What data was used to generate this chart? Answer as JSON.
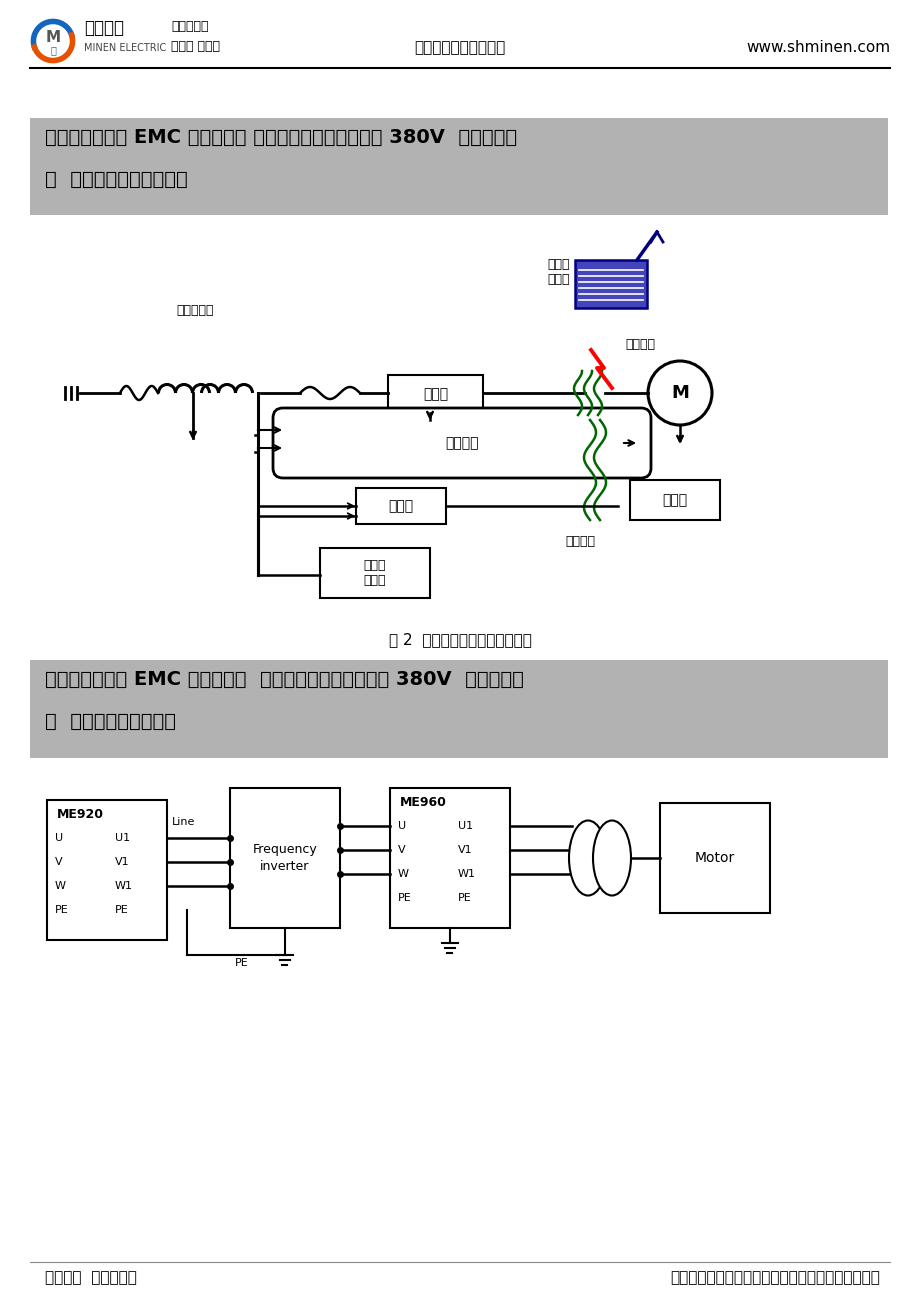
{
  "page_bg": "#ffffff",
  "logo_text1": "民恩电气",
  "logo_text2": "MINEN ELECTRIC",
  "logo_sub1": "专业供应商",
  "logo_sub2": "电抗器 滤波器",
  "header_center": "变频器专用滤波器系列",
  "header_right": "www.shminen.com",
  "section1_bg": "#b2b2b2",
  "section1_line1": "五、甘肃滤波器 EMC 输入滤波器 变频器专滤波器三相三线 380V  民恩厂家直",
  "section1_line2": "销  变频器干扰范围图示。",
  "fig_caption": "图 2  变频器输出侧谐波干扰途径",
  "section2_bg": "#b2b2b2",
  "section2_line1": "六、甘肃滤波器 EMC 输入滤波器  变频器专滤波器三相三线 380V  民恩厂家直",
  "section2_line2": "销  滤波器安装接线图。",
  "footer_left": "民恩制造  扬民族品牌",
  "footer_right": "如有需要请您联系《上海民恩电气有限公司》咨询！",
  "label_dianYuan": "电源变压器",
  "label_bianPinQi": "变频器",
  "label_chuanDaoGanRao": "传导干扰",
  "label_fangDaQi": "放大器",
  "label_chuanGanQi": "传感器",
  "label_ganYingGanRao": "感应干扰",
  "label_qiTaDianLu": "其他电\n子电路",
  "label_wuXianDian": "无线电\n接收机",
  "label_fuSheGanRao": "辐射干扰",
  "label_motor": "M"
}
